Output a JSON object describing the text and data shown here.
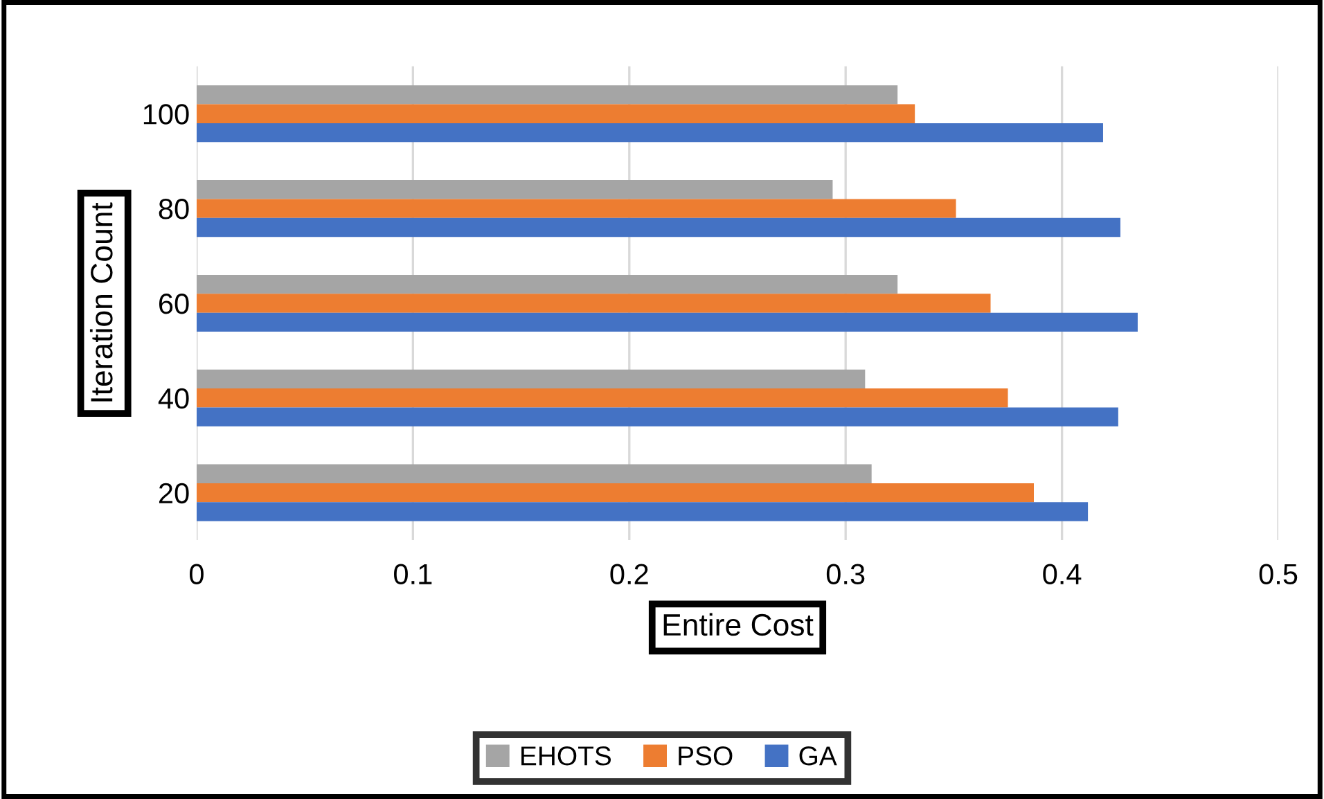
{
  "chart_data": {
    "type": "bar",
    "orientation": "horizontal",
    "xlabel": "Entire Cost",
    "ylabel": "Iteration Count",
    "categories": [
      "100",
      "80",
      "60",
      "40",
      "20"
    ],
    "series": [
      {
        "name": "EHOTS",
        "color": "#a5a5a5",
        "values": [
          0.324,
          0.294,
          0.324,
          0.309,
          0.312
        ]
      },
      {
        "name": "PSO",
        "color": "#ed7d31",
        "values": [
          0.332,
          0.351,
          0.367,
          0.375,
          0.387
        ]
      },
      {
        "name": "GA",
        "color": "#4472c4",
        "values": [
          0.419,
          0.427,
          0.435,
          0.426,
          0.412
        ]
      }
    ],
    "xlim": [
      0,
      0.5
    ],
    "xticks": [
      0,
      0.1,
      0.2,
      0.3,
      0.4,
      0.5
    ],
    "grid": "x",
    "legend": "bottom"
  }
}
